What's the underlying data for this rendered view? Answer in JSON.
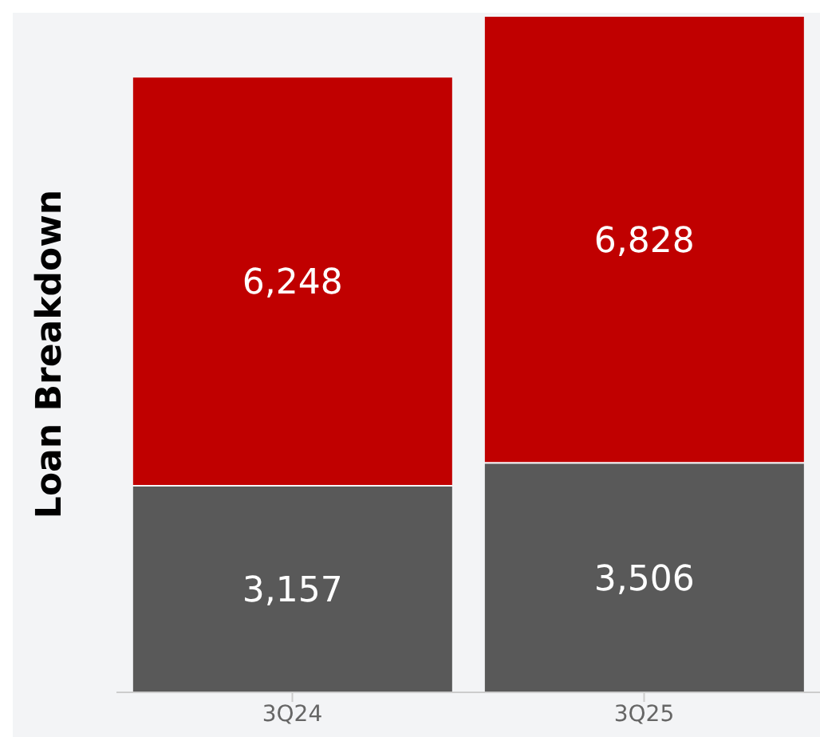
{
  "chart_data": {
    "type": "bar",
    "ylabel": "Loan Breakdown",
    "categories": [
      "3Q24",
      "3Q25"
    ],
    "stacked": true,
    "series": [
      {
        "color": "#595959",
        "values": [
          3157,
          3506
        ],
        "value_labels": [
          "3,157",
          "3,506"
        ]
      },
      {
        "color": "#c00000",
        "values": [
          6248,
          6828
        ],
        "value_labels": [
          "6,248",
          "6,828"
        ]
      }
    ]
  }
}
